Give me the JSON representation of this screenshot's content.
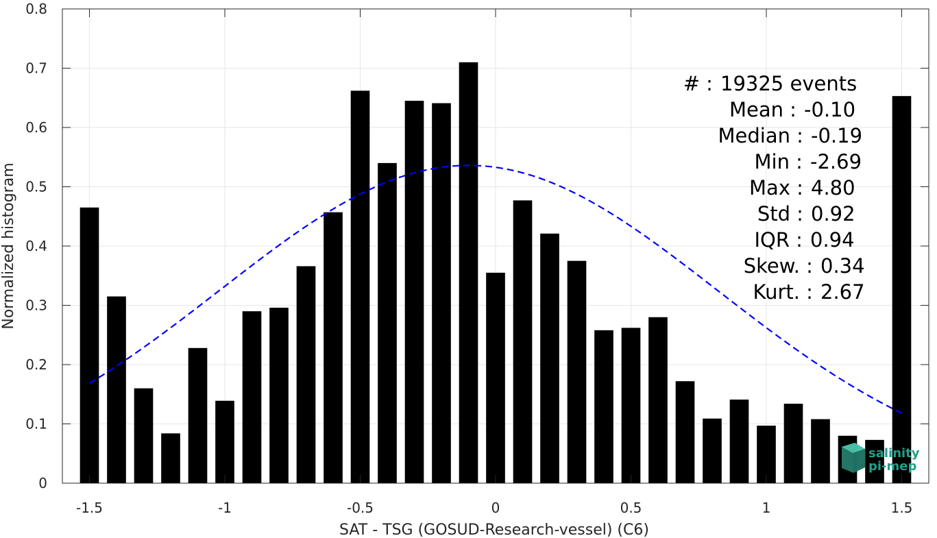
{
  "chart_data": {
    "type": "bar",
    "xlabel": "SAT - TSG (GOSUD-Research-vessel) (C6)",
    "ylabel": "Normalized histogram",
    "xlim": [
      -1.6,
      1.6
    ],
    "ylim": [
      0,
      0.8
    ],
    "grid": true,
    "x_ticks": [
      -1.5,
      -1,
      -0.5,
      0,
      0.5,
      1,
      1.5
    ],
    "x_tick_labels": [
      "-1.5",
      "-1",
      "-0.5",
      "0",
      "0.5",
      "1",
      "1.5"
    ],
    "y_ticks": [
      0,
      0.1,
      0.2,
      0.3,
      0.4,
      0.5,
      0.6,
      0.7,
      0.8
    ],
    "y_tick_labels": [
      "0",
      "0.1",
      "0.2",
      "0.3",
      "0.4",
      "0.5",
      "0.6",
      "0.7",
      "0.8"
    ],
    "bar_color": "#000000",
    "bar_width": 0.07,
    "bars": {
      "x": [
        -1.5,
        -1.4,
        -1.3,
        -1.2,
        -1.1,
        -1.0,
        -0.9,
        -0.8,
        -0.7,
        -0.6,
        -0.5,
        -0.4,
        -0.3,
        -0.2,
        -0.1,
        0.0,
        0.1,
        0.2,
        0.3,
        0.4,
        0.5,
        0.6,
        0.7,
        0.8,
        0.9,
        1.0,
        1.1,
        1.2,
        1.3,
        1.4,
        1.5
      ],
      "y": [
        0.465,
        0.315,
        0.16,
        0.084,
        0.228,
        0.139,
        0.29,
        0.296,
        0.366,
        0.457,
        0.662,
        0.54,
        0.645,
        0.641,
        0.71,
        0.355,
        0.477,
        0.421,
        0.375,
        0.258,
        0.262,
        0.28,
        0.172,
        0.109,
        0.141,
        0.097,
        0.134,
        0.108,
        0.08,
        0.073,
        0.653
      ]
    },
    "fit_curve": {
      "type": "gaussian",
      "color": "#0000ff",
      "style": "dashed",
      "mean": -0.1,
      "std": 0.92,
      "peak": 0.536,
      "x_range": [
        -1.5,
        1.5
      ]
    },
    "stats": [
      {
        "label": "#",
        "sep": ":",
        "value": "19325 events"
      },
      {
        "label": "Mean",
        "sep": ":",
        "value": "-0.10"
      },
      {
        "label": "Median",
        "sep": ":",
        "value": "-0.19"
      },
      {
        "label": "Min",
        "sep": ":",
        "value": "-2.69"
      },
      {
        "label": "Max",
        "sep": ":",
        "value": "4.80"
      },
      {
        "label": "Std",
        "sep": ":",
        "value": "0.92"
      },
      {
        "label": "IQR",
        "sep": ":",
        "value": "0.94"
      },
      {
        "label": "Skew.",
        "sep": ":",
        "value": "0.34"
      },
      {
        "label": "Kurt.",
        "sep": ":",
        "value": "2.67"
      }
    ]
  },
  "logo": {
    "line1": "salinity",
    "line2": "pi-mep",
    "color": "#1fa08a"
  }
}
